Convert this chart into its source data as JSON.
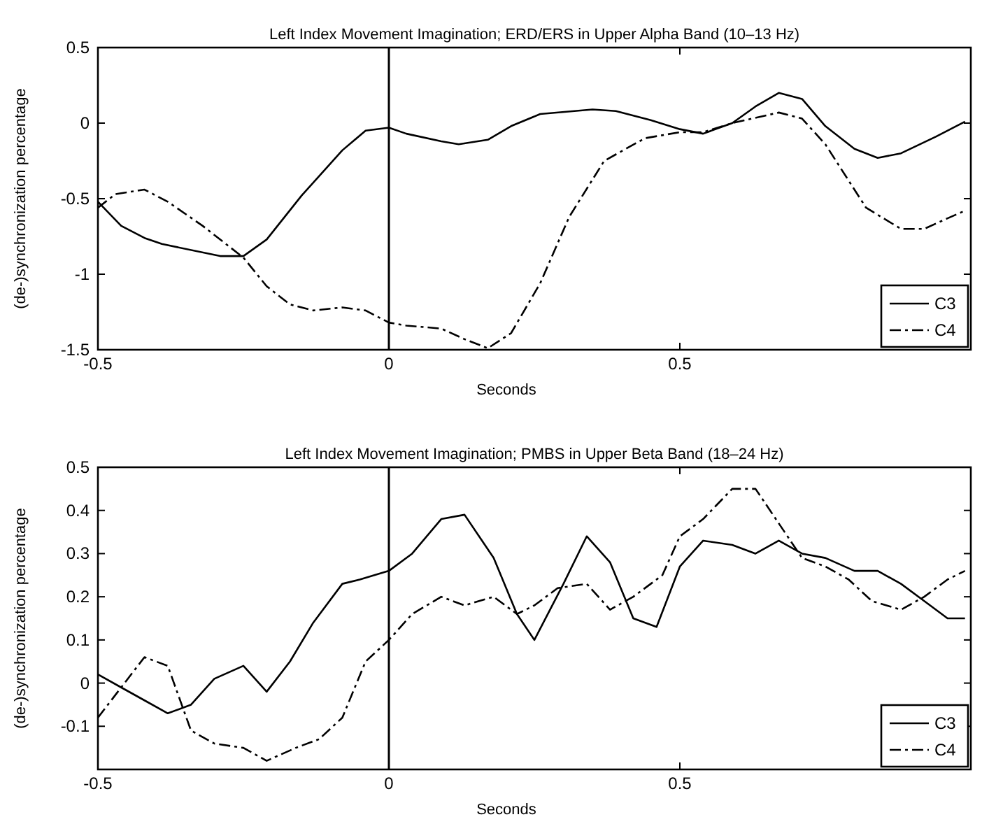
{
  "chart_data": [
    {
      "type": "line",
      "title": "Left Index Movement Imagination; ERD/ERS in Upper Alpha Band  (10–13 Hz)",
      "xlabel": "Seconds",
      "ylabel": "(de-)synchronization percentage",
      "xlim": [
        -0.5,
        1.0
      ],
      "xticks": [
        -0.5,
        0,
        0.5
      ],
      "ylim": [
        -1.5,
        0.5
      ],
      "yticks": [
        -1.5,
        -1,
        -0.5,
        0,
        0.5
      ],
      "legend": "bottom right",
      "grid": false,
      "ref_lines": [
        {
          "axis": "x",
          "value": 0,
          "color": "#000000"
        }
      ],
      "series": [
        {
          "name": "C3",
          "color": "#000000",
          "line_style": "solid",
          "x": [
            -0.5,
            -0.46,
            -0.42,
            -0.39,
            -0.29,
            -0.25,
            -0.21,
            -0.15,
            -0.08,
            -0.04,
            0,
            0.03,
            0.09,
            0.12,
            0.17,
            0.21,
            0.26,
            0.35,
            0.39,
            0.45,
            0.5,
            0.54,
            0.59,
            0.63,
            0.67,
            0.71,
            0.75,
            0.8,
            0.84,
            0.88,
            0.94,
            0.99
          ],
          "values": [
            -0.52,
            -0.68,
            -0.76,
            -0.8,
            -0.88,
            -0.88,
            -0.77,
            -0.48,
            -0.18,
            -0.05,
            -0.03,
            -0.07,
            -0.12,
            -0.14,
            -0.11,
            -0.02,
            0.06,
            0.09,
            0.08,
            0.02,
            -0.04,
            -0.07,
            0,
            0.11,
            0.2,
            0.16,
            -0.02,
            -0.17,
            -0.23,
            -0.2,
            -0.09,
            0.01
          ]
        },
        {
          "name": "C4",
          "color": "#000000",
          "line_style": "dashed",
          "x": [
            -0.5,
            -0.47,
            -0.42,
            -0.38,
            -0.32,
            -0.25,
            -0.21,
            -0.17,
            -0.13,
            -0.08,
            -0.04,
            0,
            0.03,
            0.09,
            0.13,
            0.17,
            0.21,
            0.26,
            0.31,
            0.37,
            0.44,
            0.5,
            0.54,
            0.59,
            0.67,
            0.71,
            0.75,
            0.82,
            0.88,
            0.92,
            0.96,
            0.99
          ],
          "values": [
            -0.56,
            -0.47,
            -0.44,
            -0.52,
            -0.68,
            -0.89,
            -1.08,
            -1.2,
            -1.24,
            -1.22,
            -1.24,
            -1.32,
            -1.34,
            -1.36,
            -1.43,
            -1.49,
            -1.39,
            -1.06,
            -0.62,
            -0.25,
            -0.1,
            -0.06,
            -0.06,
            0,
            0.07,
            0.03,
            -0.14,
            -0.56,
            -0.7,
            -0.7,
            -0.63,
            -0.58
          ]
        }
      ]
    },
    {
      "type": "line",
      "title": "Left Index Movement Imagination; PMBS in Upper Beta Band  (18–24 Hz)",
      "xlabel": "Seconds",
      "ylabel": "(de-)synchronization percentage",
      "xlim": [
        -0.5,
        1.0
      ],
      "xticks": [
        -0.5,
        0,
        0.5
      ],
      "ylim": [
        -0.2,
        0.5
      ],
      "yticks": [
        -0.1,
        0,
        0.1,
        0.2,
        0.3,
        0.4,
        0.5
      ],
      "legend": "bottom right",
      "grid": false,
      "ref_lines": [
        {
          "axis": "x",
          "value": 0,
          "color": "#000000"
        }
      ],
      "series": [
        {
          "name": "C3",
          "color": "#000000",
          "line_style": "solid",
          "x": [
            -0.5,
            -0.46,
            -0.42,
            -0.38,
            -0.34,
            -0.3,
            -0.25,
            -0.21,
            -0.17,
            -0.13,
            -0.08,
            -0.05,
            0,
            0.04,
            0.09,
            0.13,
            0.18,
            0.22,
            0.25,
            0.3,
            0.34,
            0.38,
            0.42,
            0.46,
            0.5,
            0.54,
            0.59,
            0.63,
            0.67,
            0.71,
            0.75,
            0.8,
            0.84,
            0.88,
            0.92,
            0.96,
            0.99
          ],
          "values": [
            0.02,
            -0.01,
            -0.04,
            -0.07,
            -0.05,
            0.01,
            0.04,
            -0.02,
            0.05,
            0.14,
            0.23,
            0.24,
            0.26,
            0.3,
            0.38,
            0.39,
            0.29,
            0.16,
            0.1,
            0.23,
            0.34,
            0.28,
            0.15,
            0.13,
            0.27,
            0.33,
            0.32,
            0.3,
            0.33,
            0.3,
            0.29,
            0.26,
            0.26,
            0.23,
            0.19,
            0.15,
            0.15
          ]
        },
        {
          "name": "C4",
          "color": "#000000",
          "line_style": "dashed",
          "x": [
            -0.5,
            -0.46,
            -0.42,
            -0.38,
            -0.34,
            -0.3,
            -0.25,
            -0.21,
            -0.16,
            -0.12,
            -0.08,
            -0.04,
            0,
            0.04,
            0.09,
            0.13,
            0.18,
            0.22,
            0.25,
            0.29,
            0.34,
            0.38,
            0.42,
            0.47,
            0.5,
            0.54,
            0.59,
            0.63,
            0.66,
            0.71,
            0.75,
            0.79,
            0.83,
            0.88,
            0.92,
            0.96,
            0.99
          ],
          "values": [
            -0.08,
            -0.01,
            0.06,
            0.04,
            -0.11,
            -0.14,
            -0.15,
            -0.18,
            -0.15,
            -0.13,
            -0.08,
            0.05,
            0.1,
            0.16,
            0.2,
            0.18,
            0.2,
            0.16,
            0.18,
            0.22,
            0.23,
            0.17,
            0.2,
            0.25,
            0.34,
            0.38,
            0.45,
            0.45,
            0.39,
            0.29,
            0.27,
            0.24,
            0.19,
            0.17,
            0.2,
            0.24,
            0.26
          ]
        }
      ]
    }
  ]
}
